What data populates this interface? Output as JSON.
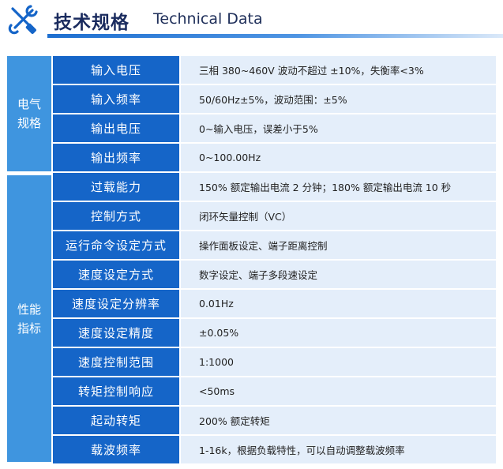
{
  "header": {
    "title_cn": "技术规格",
    "title_en": "Technical Data",
    "icon": "tools-icon",
    "accent": "#1565c8"
  },
  "groups": [
    {
      "label_line1": "电气",
      "label_line2": "规格",
      "rows": [
        {
          "param": "输入电压",
          "value": "三相 380~460V  波动不超过 ±10%，失衡率<3%"
        },
        {
          "param": "输入频率",
          "value": "50/60Hz±5%，波动范围：±5%"
        },
        {
          "param": "输出电压",
          "value": "0~输入电压，误差小于5%"
        },
        {
          "param": "输出频率",
          "value": "0~100.00Hz"
        }
      ]
    },
    {
      "label_line1": "性能",
      "label_line2": "指标",
      "rows": [
        {
          "param": "过载能力",
          "value": "150% 额定输出电流 2 分钟；180% 额定输出电流 10 秒"
        },
        {
          "param": "控制方式",
          "value": "闭环矢量控制（VC）"
        },
        {
          "param": "运行命令设定方式",
          "value": "操作面板设定、端子距离控制"
        },
        {
          "param": "速度设定方式",
          "value": "数字设定、端子多段速设定"
        },
        {
          "param": "速度设定分辨率",
          "value": "0.01Hz"
        },
        {
          "param": "速度设定精度",
          "value": "±0.05%"
        },
        {
          "param": "速度控制范围",
          "value": "1:1000"
        },
        {
          "param": "转矩控制响应",
          "value": "<50ms"
        },
        {
          "param": "起动转矩",
          "value": "200% 额定转矩"
        },
        {
          "param": "载波频率",
          "value": "1-16k，根据负载特性，可以自动调整载波频率"
        }
      ]
    }
  ]
}
